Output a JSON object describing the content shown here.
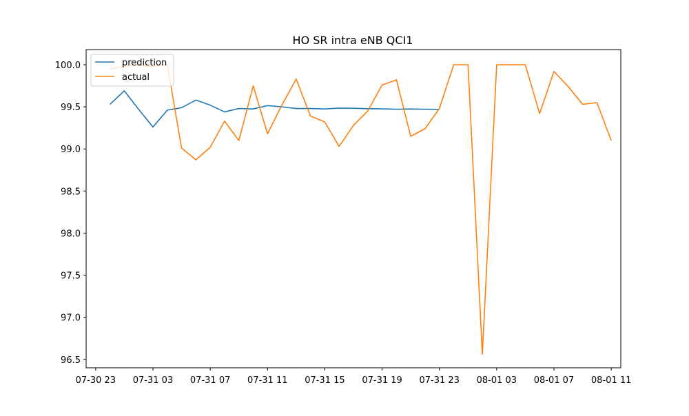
{
  "chart_data": {
    "type": "line",
    "title": "HO SR intra eNB QCI1",
    "xlabel": "",
    "ylabel": "",
    "ylim": [
      96.4,
      100.18
    ],
    "xlim": [
      "2023-07-30 22:20",
      "2023-08-01 11:40"
    ],
    "grid": false,
    "legend_position": "top-left",
    "x_tick_labels": [
      "07-30 23",
      "07-31 03",
      "07-31 07",
      "07-31 11",
      "07-31 15",
      "07-31 19",
      "07-31 23",
      "08-01 03",
      "08-01 07",
      "08-01 11"
    ],
    "x_ticks": [
      "2023-07-30 23:00",
      "2023-07-31 03:00",
      "2023-07-31 07:00",
      "2023-07-31 11:00",
      "2023-07-31 15:00",
      "2023-07-31 19:00",
      "2023-07-31 23:00",
      "2023-08-01 03:00",
      "2023-08-01 07:00",
      "2023-08-01 11:00"
    ],
    "y_tick_labels": [
      "96.5",
      "97.0",
      "97.5",
      "98.0",
      "98.5",
      "99.0",
      "99.5",
      "100.0"
    ],
    "y_ticks": [
      96.5,
      97.0,
      97.5,
      98.0,
      98.5,
      99.0,
      99.5,
      100.0
    ],
    "series": [
      {
        "name": "prediction",
        "color": "#1f77b4",
        "x": [
          "2023-07-31 00:00",
          "2023-07-31 01:00",
          "2023-07-31 02:00",
          "2023-07-31 03:00",
          "2023-07-31 04:00",
          "2023-07-31 05:00",
          "2023-07-31 06:00",
          "2023-07-31 07:00",
          "2023-07-31 08:00",
          "2023-07-31 09:00",
          "2023-07-31 10:00",
          "2023-07-31 11:00",
          "2023-07-31 12:00",
          "2023-07-31 13:00",
          "2023-07-31 14:00",
          "2023-07-31 15:00",
          "2023-07-31 16:00",
          "2023-07-31 17:00",
          "2023-07-31 18:00",
          "2023-07-31 19:00",
          "2023-07-31 20:00",
          "2023-07-31 21:00",
          "2023-07-31 22:00",
          "2023-07-31 23:00"
        ],
        "values": [
          99.53,
          99.69,
          99.47,
          99.26,
          99.46,
          99.49,
          99.58,
          99.52,
          99.44,
          99.48,
          99.475,
          99.515,
          99.5,
          99.48,
          99.48,
          99.475,
          99.485,
          99.483,
          99.478,
          99.476,
          99.472,
          99.474,
          99.472,
          99.47
        ]
      },
      {
        "name": "actual",
        "color": "#ff7f0e",
        "x": [
          "2023-07-31 00:00",
          "2023-07-31 01:00",
          "2023-07-31 02:00",
          "2023-07-31 03:00",
          "2023-07-31 04:00",
          "2023-07-31 05:00",
          "2023-07-31 06:00",
          "2023-07-31 07:00",
          "2023-07-31 08:00",
          "2023-07-31 09:00",
          "2023-07-31 10:00",
          "2023-07-31 11:00",
          "2023-07-31 12:00",
          "2023-07-31 13:00",
          "2023-07-31 14:00",
          "2023-07-31 15:00",
          "2023-07-31 16:00",
          "2023-07-31 17:00",
          "2023-07-31 18:00",
          "2023-07-31 19:00",
          "2023-07-31 20:00",
          "2023-07-31 21:00",
          "2023-07-31 22:00",
          "2023-07-31 23:00",
          "2023-08-01 00:00",
          "2023-08-01 01:00",
          "2023-08-01 02:00",
          "2023-08-01 03:00",
          "2023-08-01 04:00",
          "2023-08-01 05:00",
          "2023-08-01 06:00",
          "2023-08-01 07:00",
          "2023-08-01 08:00",
          "2023-08-01 09:00",
          "2023-08-01 10:00",
          "2023-08-01 11:00"
        ],
        "values": [
          99.95,
          99.98,
          99.99,
          99.98,
          100.0,
          99.01,
          98.87,
          99.02,
          99.33,
          99.1,
          99.75,
          99.18,
          99.52,
          99.83,
          99.39,
          99.32,
          99.03,
          99.28,
          99.45,
          99.76,
          99.82,
          99.15,
          99.24,
          99.48,
          100.0,
          100.0,
          96.56,
          100.0,
          100.0,
          100.0,
          99.42,
          99.92,
          99.74,
          99.53,
          99.55,
          99.1
        ]
      }
    ]
  }
}
